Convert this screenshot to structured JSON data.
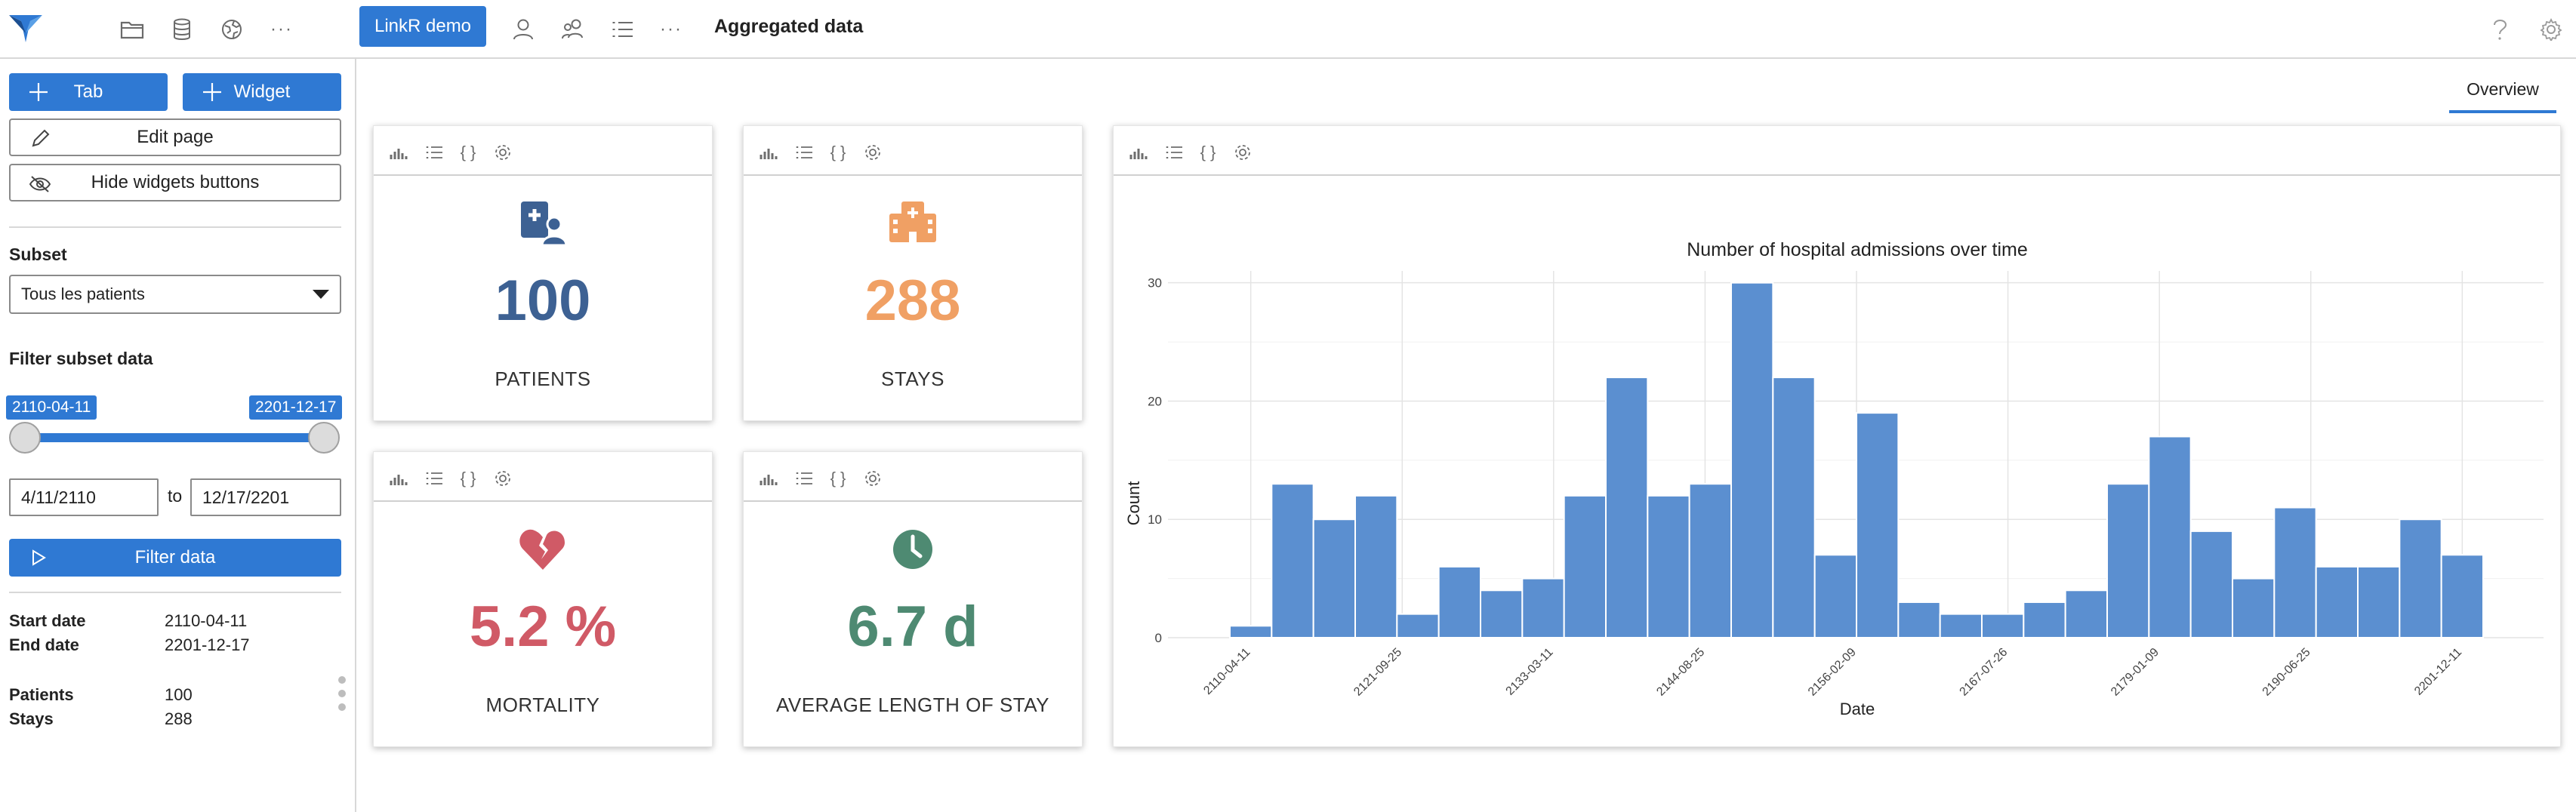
{
  "topbar": {
    "app_button_label": "LinkR demo",
    "page_title": "Aggregated data",
    "more_label": "···",
    "more_label_2": "···"
  },
  "sidebar": {
    "add_tab_label": "Tab",
    "add_widget_label": "Widget",
    "edit_page_label": "Edit page",
    "hide_widgets_label": "Hide widgets buttons",
    "subset_heading": "Subset",
    "subset_selected": "Tous les patients",
    "filter_heading": "Filter subset data",
    "range_start": "2110-04-11",
    "range_end": "2201-12-17",
    "date_from": "4/11/2110",
    "date_to_word": "to",
    "date_to": "12/17/2201",
    "filter_button_label": "Filter data",
    "info": {
      "start_date_label": "Start date",
      "start_date_value": "2110-04-11",
      "end_date_label": "End date",
      "end_date_value": "2201-12-17",
      "patients_label": "Patients",
      "patients_value": "100",
      "stays_label": "Stays",
      "stays_value": "288"
    }
  },
  "main": {
    "tab_overview": "Overview",
    "cards": {
      "patients": {
        "value": "100",
        "label": "PATIENTS",
        "color": "#3d6193"
      },
      "stays": {
        "value": "288",
        "label": "STAYS",
        "color": "#f0a064"
      },
      "mortality": {
        "value": "5.2 %",
        "label": "MORTALITY",
        "color": "#d05a66"
      },
      "los": {
        "value": "6.7 d",
        "label": "AVERAGE LENGTH OF STAY",
        "color": "#4e8a72"
      }
    },
    "toolbar_icon_code_label": "{ }"
  },
  "chart_data": {
    "type": "bar",
    "title": "Number of hospital admissions over time",
    "xlabel": "Date",
    "ylabel": "Count",
    "ylim": [
      0,
      31
    ],
    "yticks": [
      0,
      10,
      20,
      30
    ],
    "xtick_labels": [
      "2110-04-11",
      "2121-09-25",
      "2133-03-11",
      "2144-08-25",
      "2156-02-09",
      "2167-07-26",
      "2179-01-09",
      "2190-06-25",
      "2201-12-11"
    ],
    "values": [
      1,
      13,
      10,
      12,
      2,
      6,
      4,
      5,
      12,
      22,
      12,
      13,
      30,
      22,
      7,
      19,
      3,
      2,
      2,
      3,
      4,
      13,
      17,
      9,
      5,
      11,
      6,
      6,
      10,
      7
    ],
    "bar_color": "#5b8fd0",
    "grid": true
  }
}
